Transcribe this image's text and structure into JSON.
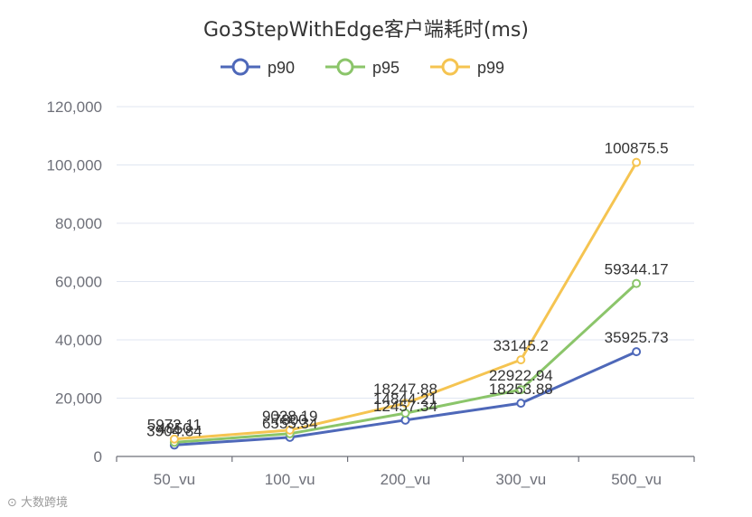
{
  "chart_data": {
    "type": "line",
    "title": "Go3StepWithEdge客户端耗时(ms)",
    "categories": [
      "50_vu",
      "100_vu",
      "200_vu",
      "300_vu",
      "500_vu"
    ],
    "series": [
      {
        "name": "p90",
        "color": "#4e68b9",
        "values": [
          3904.84,
          6555.34,
          12457.34,
          18253.88,
          35925.73
        ]
      },
      {
        "name": "p95",
        "color": "#8bc56a",
        "values": [
          4850.0,
          7800.0,
          14844.21,
          22922.94,
          59344.17
        ]
      },
      {
        "name": "p99",
        "color": "#f5c451",
        "values": [
          5972.11,
          9028.19,
          18247.88,
          33145.2,
          100875.5
        ]
      }
    ],
    "y_ticks": [
      "0",
      "20,000",
      "40,000",
      "60,000",
      "80,000",
      "100,000",
      "120,000"
    ],
    "ylim": [
      0,
      120000
    ],
    "legend_position": "top",
    "grid": true
  },
  "watermark": "大数跨境"
}
